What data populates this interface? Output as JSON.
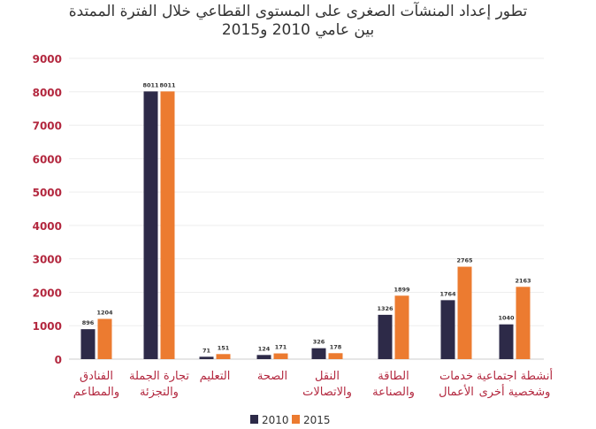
{
  "chart_data": {
    "type": "bar",
    "title": "تطور إعداد المنشآت الصغرى على المستوى القطاعي خلال الفترة الممتدة",
    "subtitle": "بين عامي 2010 و2015",
    "xlabel": "",
    "ylabel": "",
    "ylim": [
      0,
      9000
    ],
    "yticks": [
      0,
      1000,
      2000,
      3000,
      4000,
      5000,
      6000,
      7000,
      8000,
      9000
    ],
    "grid": true,
    "legend_position": "bottom",
    "categories": [
      [
        "الفنادق",
        "والمطاعم"
      ],
      [
        "تجارة الجملة",
        "والتجزئة"
      ],
      [
        "التعليم"
      ],
      [
        "الصحة"
      ],
      [
        "النقل",
        "والاتصالات"
      ],
      [
        "الطاقة",
        "والصناعة"
      ],
      [
        "خدمات",
        "الأعمال"
      ],
      [
        "أنشطة اجتماعية",
        "وشخصية أخرى"
      ]
    ],
    "series": [
      {
        "name": "2010",
        "color": "#2d2a48",
        "values": [
          896,
          8011,
          71,
          124,
          326,
          1326,
          1764,
          1040
        ]
      },
      {
        "name": "2015",
        "color": "#ec7b30",
        "values": [
          1204,
          8011,
          151,
          171,
          178,
          1899,
          2765,
          2163
        ]
      }
    ],
    "axis_label_color": "#b3283f"
  }
}
